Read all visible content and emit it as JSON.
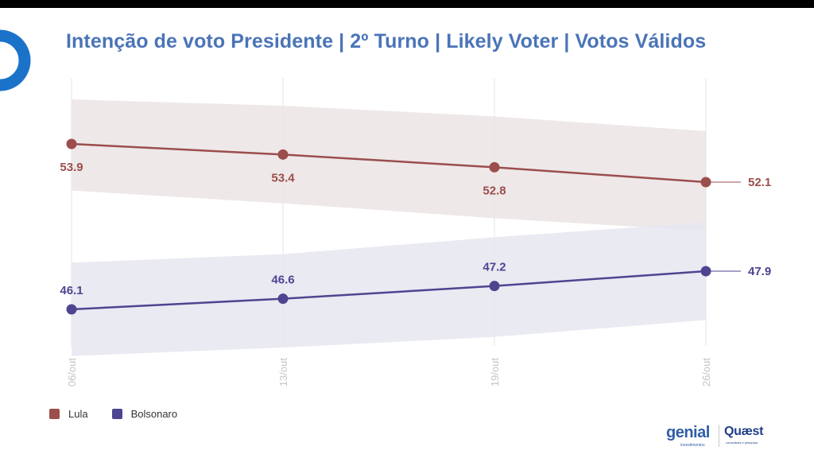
{
  "title": "Intenção de voto Presidente | 2º Turno | Likely Voter | Votos Válidos",
  "colors": {
    "title": "#4a74b7",
    "lula": "#9b4e4c",
    "lula_band": "#ebe4e4",
    "bolsonaro": "#4d4590",
    "bolsonaro_band": "#e5e6f0",
    "corner_logo": "#1a73c9"
  },
  "brand": {
    "genial_logo_text": "genial",
    "genial_sub": "investimentos",
    "quaest_logo_text": "Quæst",
    "quaest_sub": "consultoria e pesquisa"
  },
  "chart_data": {
    "type": "line",
    "categories": [
      "06/out",
      "13/out",
      "19/out",
      "26/out"
    ],
    "series": [
      {
        "name": "Lula",
        "values": [
          53.9,
          53.4,
          52.8,
          52.1
        ],
        "labels": [
          "53.9",
          "53.4",
          "52.8",
          "52.1"
        ],
        "band_upper": [
          56.0,
          55.7,
          55.2,
          54.5
        ],
        "band_lower": [
          51.7,
          51.1,
          50.4,
          49.8
        ],
        "color": "#9b4e4c",
        "band_color": "#ebe4e4"
      },
      {
        "name": "Bolsonaro",
        "values": [
          46.1,
          46.6,
          47.2,
          47.9
        ],
        "labels": [
          "46.1",
          "46.6",
          "47.2",
          "47.9"
        ],
        "band_upper": [
          48.3,
          48.7,
          49.5,
          50.2
        ],
        "band_lower": [
          43.9,
          44.3,
          44.8,
          45.6
        ],
        "color": "#4d4590",
        "band_color": "#e5e6f0"
      }
    ],
    "ylim": [
      42.5,
      57.5
    ],
    "grid": "vertical",
    "legend": "bottom-left",
    "xlabel": "",
    "ylabel": ""
  }
}
